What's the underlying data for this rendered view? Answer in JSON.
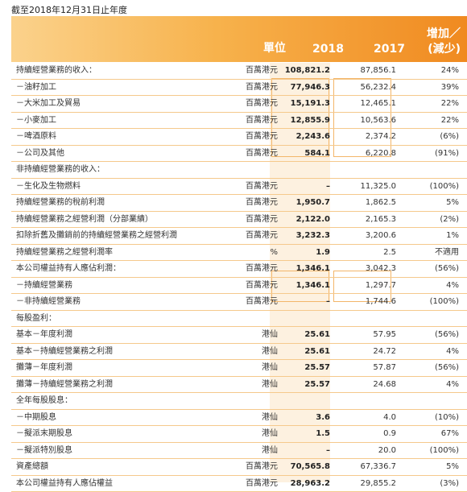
{
  "caption": "截至2018年12月31日止年度",
  "header": {
    "unit": "單位",
    "y2018": "2018",
    "y2017": "2017",
    "change_line1": "增加／",
    "change_line2": "(減少)"
  },
  "rows": [
    {
      "label": "持續經營業務的收入：",
      "unit": "百萬港元",
      "v2018": "108,821.2",
      "v2017": "87,856.1",
      "change": "24%"
    },
    {
      "label": "－油籽加工",
      "unit": "百萬港元",
      "v2018": "77,946.3",
      "v2017": "56,232.4",
      "change": "39%"
    },
    {
      "label": "－大米加工及貿易",
      "unit": "百萬港元",
      "v2018": "15,191.3",
      "v2017": "12,465.1",
      "change": "22%"
    },
    {
      "label": "－小麥加工",
      "unit": "百萬港元",
      "v2018": "12,855.9",
      "v2017": "10,563.6",
      "change": "22%"
    },
    {
      "label": "－啤酒原料",
      "unit": "百萬港元",
      "v2018": "2,243.6",
      "v2017": "2,374.2",
      "change": "(6%)"
    },
    {
      "label": "－公司及其他",
      "unit": "百萬港元",
      "v2018": "584.1",
      "v2017": "6,220.8",
      "change": "(91%)"
    },
    {
      "label": "非持續經營業務的收入：",
      "unit": "",
      "v2018": "",
      "v2017": "",
      "change": ""
    },
    {
      "label": "－生化及生物燃料",
      "unit": "百萬港元",
      "v2018": "–",
      "v2017": "11,325.0",
      "change": "(100%)"
    },
    {
      "label": "持續經營業務的稅前利潤",
      "unit": "百萬港元",
      "v2018": "1,950.7",
      "v2017": "1,862.5",
      "change": "5%"
    },
    {
      "label": "持續經營業務之經營利潤（分部業績）",
      "unit": "百萬港元",
      "v2018": "2,122.0",
      "v2017": "2,165.3",
      "change": "(2%)"
    },
    {
      "label": "扣除折舊及攤銷前的持續經營業務之經營利潤",
      "unit": "百萬港元",
      "v2018": "3,232.3",
      "v2017": "3,200.6",
      "change": "1%"
    },
    {
      "label": "持續經營業務之經營利潤率",
      "unit": "%",
      "v2018": "1.9",
      "v2017": "2.5",
      "change": "不適用"
    },
    {
      "label": "本公司權益持有人應佔利潤：",
      "unit": "百萬港元",
      "v2018": "1,346.1",
      "v2017": "3,042.3",
      "change": "(56%)"
    },
    {
      "label": "－持續經營業務",
      "unit": "百萬港元",
      "v2018": "1,346.1",
      "v2017": "1,297.7",
      "change": "4%"
    },
    {
      "label": "－非持續經營業務",
      "unit": "百萬港元",
      "v2018": "–",
      "v2017": "1,744.6",
      "change": "(100%)"
    },
    {
      "label": "每股盈利：",
      "unit": "",
      "v2018": "",
      "v2017": "",
      "change": ""
    },
    {
      "label": "基本－年度利潤",
      "unit": "港仙",
      "v2018": "25.61",
      "v2017": "57.95",
      "change": "(56%)"
    },
    {
      "label": "基本－持續經營業務之利潤",
      "unit": "港仙",
      "v2018": "25.61",
      "v2017": "24.72",
      "change": "4%"
    },
    {
      "label": "攤薄－年度利潤",
      "unit": "港仙",
      "v2018": "25.57",
      "v2017": "57.87",
      "change": "(56%)"
    },
    {
      "label": "攤薄－持續經營業務之利潤",
      "unit": "港仙",
      "v2018": "25.57",
      "v2017": "24.68",
      "change": "4%"
    },
    {
      "label": "全年每股股息：",
      "unit": "",
      "v2018": "",
      "v2017": "",
      "change": ""
    },
    {
      "label": "－中期股息",
      "unit": "港仙",
      "v2018": "3.6",
      "v2017": "4.0",
      "change": "(10%)"
    },
    {
      "label": "－擬派末期股息",
      "unit": "港仙",
      "v2018": "1.5",
      "v2017": "0.9",
      "change": "67%"
    },
    {
      "label": "－擬派特別股息",
      "unit": "港仙",
      "v2018": "–",
      "v2017": "20.0",
      "change": "(100%)"
    },
    {
      "label": "資產總額",
      "unit": "百萬港元",
      "v2018": "70,565.8",
      "v2017": "67,336.7",
      "change": "5%"
    },
    {
      "label": "本公司權益持有人應佔權益",
      "unit": "百萬港元",
      "v2018": "28,963.2",
      "v2017": "29,855.2",
      "change": "(3%)"
    }
  ]
}
